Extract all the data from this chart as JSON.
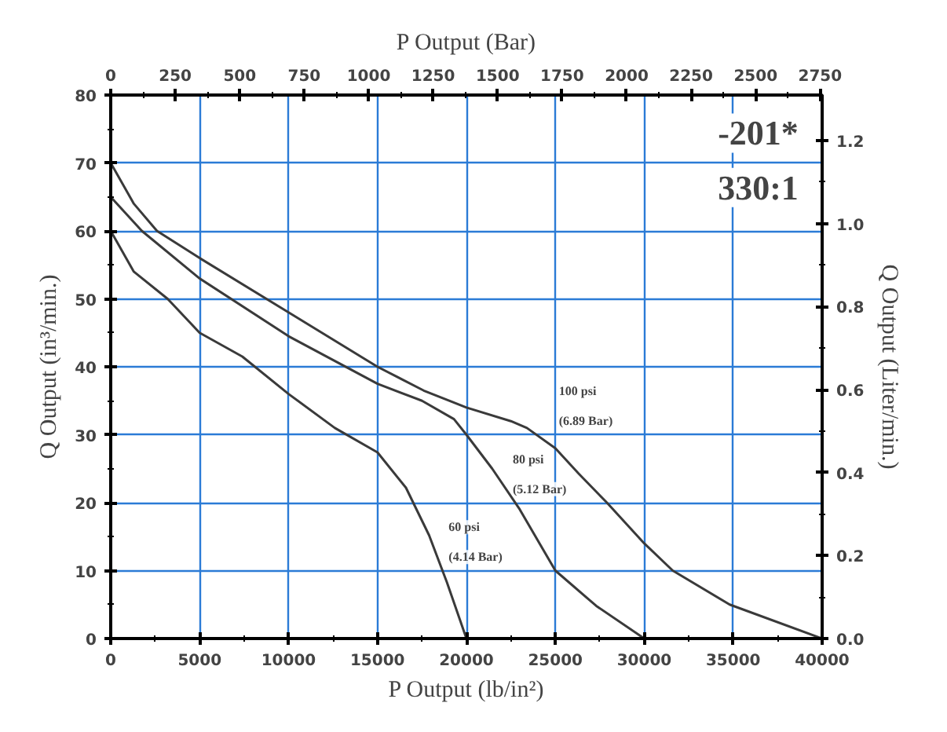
{
  "chart_data": {
    "type": "line",
    "xlabel": "P Output (lb/in²)",
    "ylabel": "Q Output (in³/min.)",
    "y2label": "Q Output (Liter/min.)",
    "x2label": "P Output (Bar)",
    "xlim": [
      0,
      40000
    ],
    "xticks": [
      0,
      5000,
      10000,
      15000,
      20000,
      25000,
      30000,
      35000,
      40000
    ],
    "x2lim": [
      0,
      2758
    ],
    "x2ticks": [
      0,
      250,
      500,
      750,
      1000,
      1250,
      1500,
      1750,
      2000,
      2250,
      2500,
      2750
    ],
    "ylim": [
      0,
      80
    ],
    "yticks": [
      0,
      10,
      20,
      30,
      40,
      50,
      60,
      70,
      80
    ],
    "y2lim": [
      0,
      1.31
    ],
    "y2ticks": [
      {
        "value": 0,
        "label": "0.0"
      },
      {
        "value": 0.2,
        "label": "0.2"
      },
      {
        "value": 0.4,
        "label": "0.4"
      },
      {
        "value": 0.6,
        "label": "0.6"
      },
      {
        "value": 0.8,
        "label": "0.8"
      },
      {
        "value": 1.0,
        "label": "1.0"
      },
      {
        "value": 1.2,
        "label": "1.2"
      }
    ],
    "grid": true,
    "marker": "none",
    "line_style": "solid",
    "series": [
      {
        "color": "#3a3a3a",
        "x": [
          0,
          1300,
          2600,
          5000,
          10000,
          15000,
          17600,
          20000,
          22500,
          23400,
          25000,
          26300,
          27900,
          30000,
          31600,
          34800,
          40000
        ],
        "values": [
          70,
          64,
          60,
          56,
          48,
          40,
          36.5,
          34,
          32,
          31,
          28,
          24.3,
          20,
          14,
          10,
          5,
          0
        ]
      },
      {
        "color": "#3a3a3a",
        "x": [
          0,
          1750,
          5000,
          10000,
          15000,
          17500,
          19300,
          20000,
          21450,
          23000,
          25000,
          27300,
          30000
        ],
        "values": [
          65,
          60,
          53,
          44.5,
          37.5,
          35,
          32.3,
          30,
          25,
          19,
          10,
          4.8,
          0
        ]
      },
      {
        "color": "#3a3a3a",
        "x": [
          0,
          1300,
          3200,
          5000,
          7400,
          10000,
          12600,
          15000,
          16600,
          17900,
          18900,
          20000
        ],
        "values": [
          60,
          54,
          50,
          45,
          41.5,
          36,
          31,
          27.4,
          22.2,
          15.2,
          8.3,
          0
        ]
      }
    ],
    "annotations": [
      "100 psi",
      "(6.89 Bar)",
      "80 psi",
      "(5.12 Bar)",
      "60 psi",
      "(4.14 Bar)",
      "-201*",
      "330:1"
    ]
  }
}
